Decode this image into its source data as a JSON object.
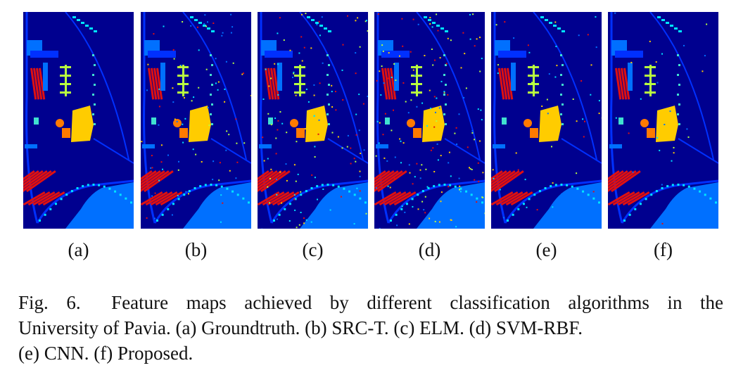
{
  "panels": [
    {
      "id": "a",
      "label": "(a)",
      "noise": 0
    },
    {
      "id": "b",
      "label": "(b)",
      "noise": 0.35
    },
    {
      "id": "c",
      "label": "(c)",
      "noise": 0.5
    },
    {
      "id": "d",
      "label": "(d)",
      "noise": 0.6
    },
    {
      "id": "e",
      "label": "(e)",
      "noise": 0.18
    },
    {
      "id": "f",
      "label": "(f)",
      "noise": 0.1
    }
  ],
  "caption": {
    "fig_number": "Fig. 6.",
    "line1": "Feature maps achieved by different classification algorithms in the",
    "line2": "University of Pavia. (a) Groundtruth. (b) SRC-T. (c) ELM. (d) SVM-RBF.",
    "line3": "(e) CNN. (f) Proposed."
  },
  "colors": {
    "background": "#00008f",
    "road": "#0030ff",
    "meadow": "#0070ff",
    "trees": "#00e5ff",
    "bitumen": "#e01010",
    "bricks": "#ff7a00",
    "soil": "#ffcc00",
    "gravel": "#b8ff40",
    "shadow": "#40e0d0"
  }
}
